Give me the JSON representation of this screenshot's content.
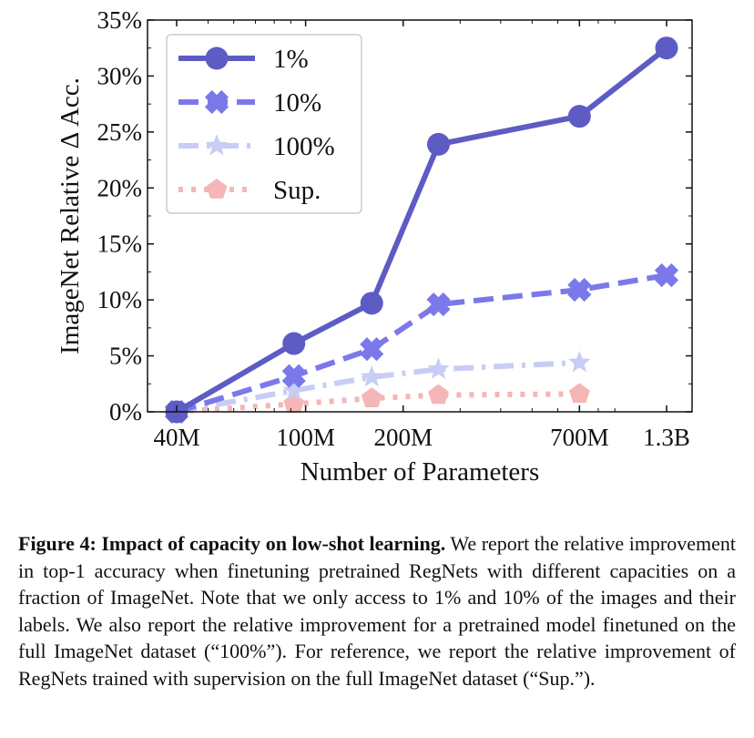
{
  "chart_data": {
    "type": "line",
    "xlabel": "Number of Parameters",
    "ylabel": "ImageNet Relative Δ Acc.",
    "x_scale": "log",
    "x_ticks": [
      {
        "value": 40,
        "label": "40M"
      },
      {
        "value": 100,
        "label": "100M"
      },
      {
        "value": 200,
        "label": "200M"
      },
      {
        "value": 700,
        "label": "700M"
      },
      {
        "value": 1300,
        "label": "1.3B"
      }
    ],
    "ylim": [
      0,
      35
    ],
    "y_ticks": [
      "0%",
      "5%",
      "10%",
      "15%",
      "20%",
      "25%",
      "30%",
      "35%"
    ],
    "legend_position": "top-left",
    "grid": false,
    "series": [
      {
        "name": "1%",
        "color": "#5d5cc4",
        "marker": "circle",
        "dash": "solid",
        "x": [
          40,
          92,
          160,
          257,
          700,
          1300
        ],
        "y": [
          0.0,
          6.1,
          9.7,
          23.9,
          26.4,
          32.5
        ]
      },
      {
        "name": "10%",
        "color": "#7b79ea",
        "marker": "x",
        "dash": "dashed",
        "x": [
          40,
          92,
          160,
          257,
          700,
          1300
        ],
        "y": [
          0.0,
          3.2,
          5.6,
          9.6,
          10.9,
          12.2
        ]
      },
      {
        "name": "100%",
        "color": "#c8cdf5",
        "marker": "star",
        "dash": "dashdot",
        "x": [
          40,
          92,
          160,
          257,
          700
        ],
        "y": [
          0.0,
          1.9,
          3.1,
          3.8,
          4.4
        ]
      },
      {
        "name": "Sup.",
        "color": "#f4b6b6",
        "marker": "pentagon",
        "dash": "dotted",
        "x": [
          40,
          92,
          160,
          257,
          700
        ],
        "y": [
          0.0,
          0.7,
          1.2,
          1.5,
          1.6
        ]
      }
    ]
  },
  "caption": {
    "label": "Figure 4:",
    "title": "Impact of capacity on low-shot learning.",
    "text": "We report the relative improvement in top-1 accuracy when finetuning pretrained RegNets with different capacities on a fraction of ImageNet. Note that we only access to 1% and 10% of the images and their labels. We also report the relative improvement for a pretrained model finetuned on the full ImageNet dataset (“100%”). For reference, we report the relative improvement of RegNets trained with supervision on the full ImageNet dataset (“Sup.”)."
  }
}
